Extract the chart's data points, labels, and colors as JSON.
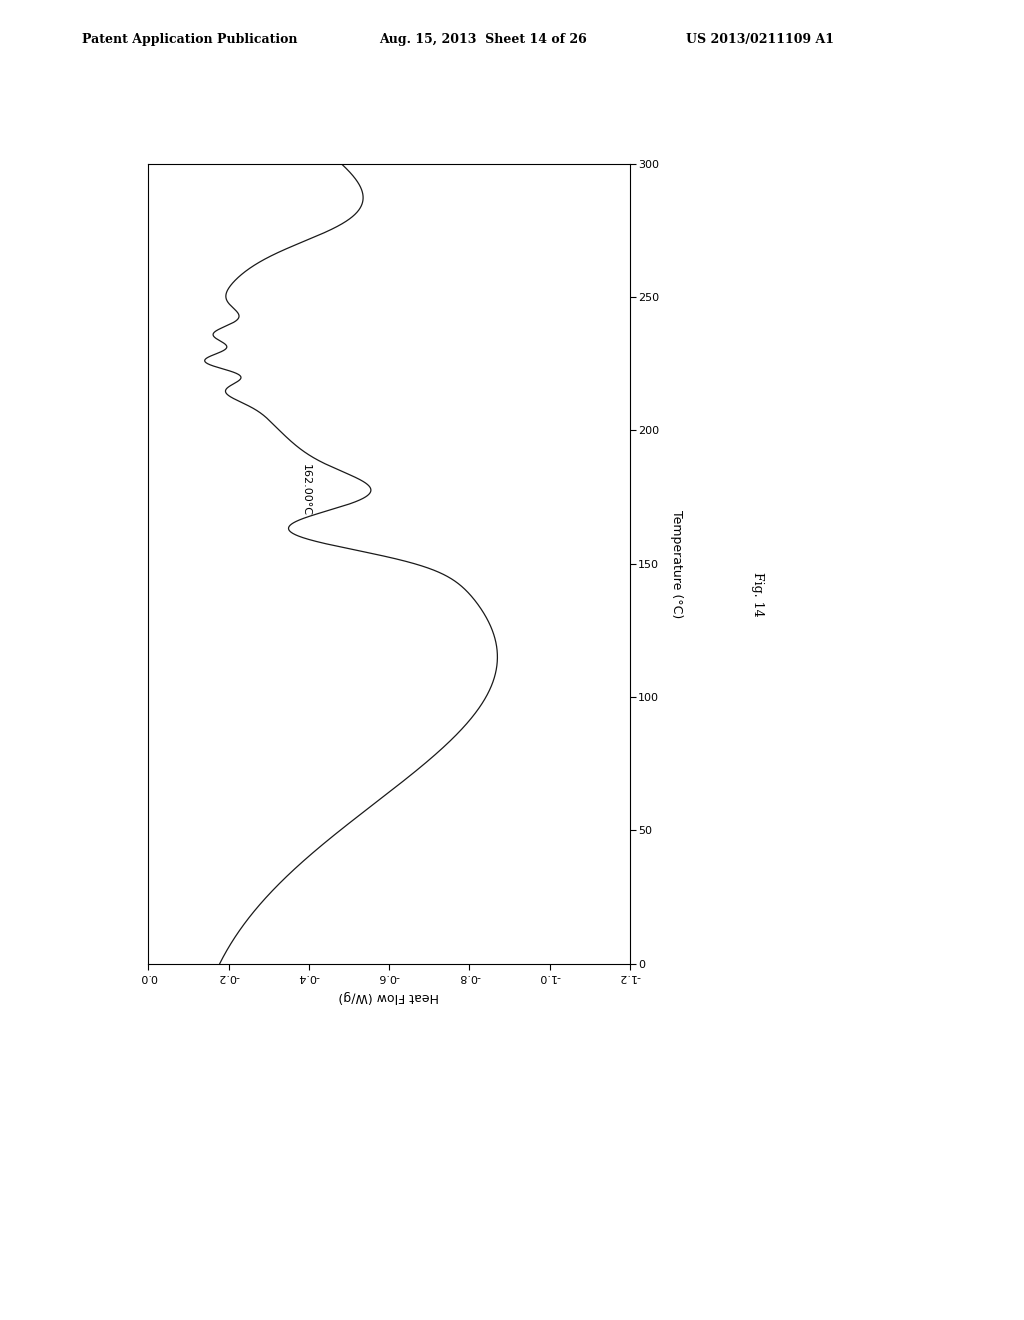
{
  "header_left": "Patent Application Publication",
  "header_mid": "Aug. 15, 2013  Sheet 14 of 26",
  "header_right": "US 2013/0211109 A1",
  "fig_label": "Fig. 14",
  "xlabel_bottom": "Heat Flow (W/g)",
  "ylabel_right": "Temperature (°C)",
  "annotation": "162.00°C",
  "x_ticks": [
    0.0,
    -0.2,
    -0.4,
    -0.6,
    -0.8,
    -1.0,
    -1.2
  ],
  "x_tick_labels": [
    "0.0",
    "-0.2",
    "-0.4",
    "-0.6",
    "-0.8",
    "-1.0",
    "-1.2"
  ],
  "y_ticks": [
    0,
    50,
    100,
    150,
    200,
    250,
    300
  ],
  "y_tick_labels": [
    "0",
    "50",
    "100",
    "150",
    "200",
    "250",
    "300"
  ],
  "background_color": "#ffffff",
  "line_color": "#1a1a1a",
  "header_fontsize": 9,
  "tick_fontsize": 8,
  "label_fontsize": 9
}
